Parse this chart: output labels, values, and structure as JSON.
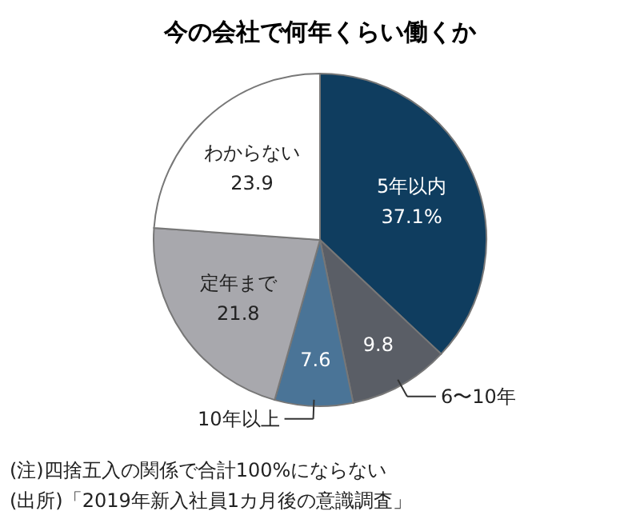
{
  "chart_data": {
    "type": "pie",
    "title": "今の会社で何年くらい働くか",
    "categories": [
      "5年以内",
      "6〜10年",
      "10年以上",
      "定年まで",
      "わからない"
    ],
    "values": [
      37.1,
      9.8,
      7.6,
      21.8,
      23.9
    ],
    "value_labels": [
      "37.1%",
      "9.8",
      "7.6",
      "21.8",
      "23.9"
    ],
    "colors": [
      "#0f3d5f",
      "#5a5e66",
      "#4a7497",
      "#a8a8ad",
      "#ffffff"
    ],
    "annotations": [
      "(注)四捨五入の関係で合計100%にならない",
      "(出所)「2019年新入社員1カ月後の意識調査」"
    ]
  }
}
